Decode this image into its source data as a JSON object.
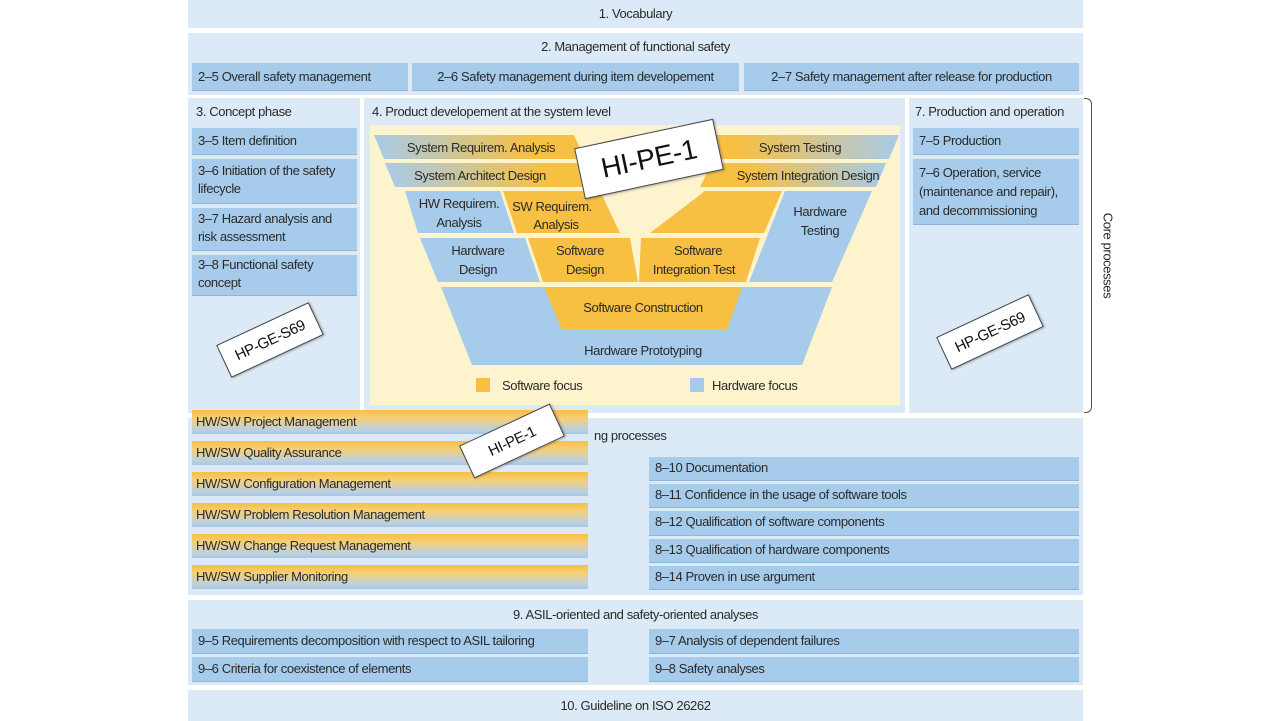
{
  "colors": {
    "background_band": "#dbeaf6",
    "box_blue": "#a7cbea",
    "software_yellow": "#f7c043",
    "inner_panel": "#fdf3cc"
  },
  "s1": {
    "title": "1. Vocabulary"
  },
  "s2": {
    "title": "2. Management of functional safety",
    "items": [
      "2–5 Overall safety management",
      "2–6 Safety management during item developement",
      "2–7 Safety management after release for production"
    ]
  },
  "s3": {
    "title": "3. Concept phase",
    "items": [
      "3–5 Item definition",
      "3–6 Initiation of the safety lifecycle",
      "3–7 Hazard analysis and risk assessment",
      "3–8 Functional safety concept"
    ]
  },
  "s4": {
    "title": "4. Product developement at the system level",
    "v": {
      "sys_req": "System Requirem. Analysis",
      "sys_arch": "System Architect Design",
      "hw_req_1": "HW Requirem.",
      "hw_req_2": "Analysis",
      "sw_req_1": "SW Requirem.",
      "sw_req_2": "Analysis",
      "hw_design_1": "Hardware",
      "hw_design_2": "Design",
      "sw_design_1": "Software",
      "sw_design_2": "Design",
      "sw_int_1": "Software",
      "sw_int_2": "Integration Test",
      "hw_test_1": "Hardware",
      "hw_test_2": "Testing",
      "sys_test": "System Testing",
      "sys_int": "System Integration Design",
      "sw_construction": "Software Construction",
      "hw_prototyping": "Hardware Prototyping"
    },
    "legend": {
      "software": "Software focus",
      "hardware": "Hardware focus"
    }
  },
  "s7": {
    "title": "7. Production and operation",
    "items": [
      "7–5 Production",
      "7–6 Operation, service (maintenance and repair), and decommissioning"
    ]
  },
  "core_processes": "Core processes",
  "s8": {
    "title": "ng processes",
    "items": [
      "8–10 Documentation",
      "8–11 Confidence in the usage of software tools",
      "8–12 Qualification of software components",
      "8–13 Qualification of hardware components",
      "8–14 Proven in use argument"
    ]
  },
  "hwsw": [
    "HW/SW Project Management",
    "HW/SW Quality Assurance",
    "HW/SW Configuration Management",
    "HW/SW Problem Resolution Management",
    "HW/SW Change Request Management",
    "HW/SW Supplier Monitoring"
  ],
  "s9": {
    "title": "9. ASIL-oriented and safety-oriented analyses",
    "left": [
      "9–5 Requirements decomposition with respect to ASIL tailoring",
      "9–6 Criteria for coexistence of elements"
    ],
    "right": [
      "9–7 Analysis of dependent failures",
      "9–8 Safety analyses"
    ]
  },
  "s10": {
    "title": "10. Guideline on ISO 26262"
  },
  "stamps": {
    "big": "HI-PE-1",
    "left": "HP-GE-S69",
    "right": "HP-GE-S69",
    "small": "HI-PE-1"
  }
}
